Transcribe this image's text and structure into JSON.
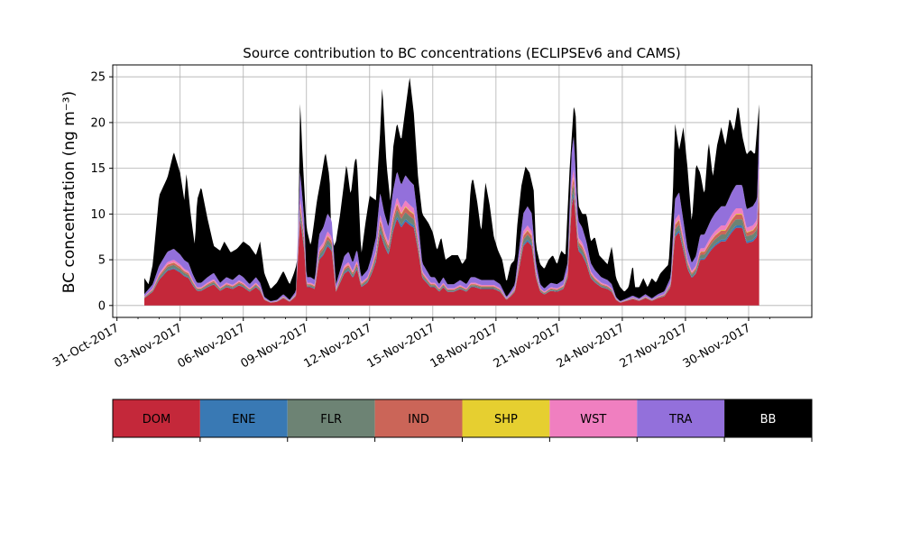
{
  "chart_data": {
    "type": "area",
    "stacked": true,
    "title": "Source contribution to BC concentrations (ECLIPSEv6 and CAMS)",
    "ylabel": "BC concentration (ng m⁻³)",
    "xlabel": "",
    "ylim": [
      -1.3,
      26.3
    ],
    "xlim": [
      -0.2,
      33.0
    ],
    "x_axis_type": "date",
    "x_start_date": "2017-11-01",
    "x_end_date": "2017-12-01",
    "x_ticks": [
      0,
      3,
      6,
      9,
      12,
      15,
      18,
      21,
      24,
      27,
      30
    ],
    "x_tick_labels": [
      "31-Oct-2017",
      "03-Nov-2017",
      "06-Nov-2017",
      "09-Nov-2017",
      "12-Nov-2017",
      "15-Nov-2017",
      "18-Nov-2017",
      "21-Nov-2017",
      "24-Nov-2017",
      "27-Nov-2017",
      "30-Nov-2017"
    ],
    "y_ticks": [
      0,
      5,
      10,
      15,
      20,
      25
    ],
    "y_tick_labels": [
      "0",
      "5",
      "10",
      "15",
      "20",
      "25"
    ],
    "grid": true,
    "total_series": [
      [
        1.3,
        3.0
      ],
      [
        1.5,
        2.3
      ],
      [
        1.7,
        4.5
      ],
      [
        2.0,
        12.0
      ],
      [
        2.4,
        14.0
      ],
      [
        2.7,
        16.8
      ],
      [
        3.0,
        14.5
      ],
      [
        3.2,
        11.5
      ],
      [
        3.3,
        14.5
      ],
      [
        3.5,
        10.0
      ],
      [
        3.7,
        6.5
      ],
      [
        3.8,
        11.5
      ],
      [
        4.0,
        13.0
      ],
      [
        4.3,
        9.5
      ],
      [
        4.6,
        6.5
      ],
      [
        4.9,
        6.0
      ],
      [
        5.1,
        7.0
      ],
      [
        5.4,
        5.8
      ],
      [
        5.7,
        6.2
      ],
      [
        6.0,
        7.0
      ],
      [
        6.3,
        6.5
      ],
      [
        6.6,
        5.5
      ],
      [
        6.8,
        7.0
      ],
      [
        7.0,
        3.5
      ],
      [
        7.3,
        1.8
      ],
      [
        7.6,
        2.5
      ],
      [
        7.9,
        3.8
      ],
      [
        8.2,
        2.3
      ],
      [
        8.4,
        3.5
      ],
      [
        8.6,
        5.0
      ],
      [
        8.7,
        22.5
      ],
      [
        8.8,
        17.0
      ],
      [
        9.0,
        8.5
      ],
      [
        9.2,
        6.5
      ],
      [
        9.3,
        8.0
      ],
      [
        9.5,
        11.5
      ],
      [
        9.7,
        14.0
      ],
      [
        9.9,
        16.8
      ],
      [
        10.1,
        14.0
      ],
      [
        10.2,
        6.0
      ],
      [
        10.4,
        7.0
      ],
      [
        10.6,
        10.0
      ],
      [
        10.9,
        15.5
      ],
      [
        11.1,
        12.0
      ],
      [
        11.3,
        16.0
      ],
      [
        11.4,
        16.0
      ],
      [
        11.6,
        5.5
      ],
      [
        11.8,
        9.0
      ],
      [
        12.0,
        12.0
      ],
      [
        12.3,
        11.5
      ],
      [
        12.5,
        19.0
      ],
      [
        12.6,
        24.2
      ],
      [
        12.8,
        15.5
      ],
      [
        13.0,
        11.0
      ],
      [
        13.1,
        17.0
      ],
      [
        13.3,
        20.0
      ],
      [
        13.5,
        18.0
      ],
      [
        13.7,
        21.5
      ],
      [
        13.9,
        25.0
      ],
      [
        14.1,
        21.0
      ],
      [
        14.3,
        14.0
      ],
      [
        14.5,
        10.0
      ],
      [
        14.8,
        9.0
      ],
      [
        15.0,
        8.0
      ],
      [
        15.2,
        6.0
      ],
      [
        15.4,
        7.5
      ],
      [
        15.6,
        5.0
      ],
      [
        15.9,
        5.5
      ],
      [
        16.2,
        5.5
      ],
      [
        16.4,
        4.5
      ],
      [
        16.6,
        5.2
      ],
      [
        16.8,
        13.0
      ],
      [
        16.9,
        14.0
      ],
      [
        17.1,
        11.5
      ],
      [
        17.3,
        8.0
      ],
      [
        17.5,
        13.5
      ],
      [
        17.7,
        11.0
      ],
      [
        17.9,
        7.5
      ],
      [
        18.1,
        6.0
      ],
      [
        18.3,
        5.0
      ],
      [
        18.5,
        2.5
      ],
      [
        18.7,
        4.5
      ],
      [
        18.9,
        5.0
      ],
      [
        19.0,
        8.5
      ],
      [
        19.2,
        13.0
      ],
      [
        19.4,
        15.2
      ],
      [
        19.6,
        14.5
      ],
      [
        19.8,
        12.5
      ],
      [
        19.9,
        6.5
      ],
      [
        20.1,
        4.5
      ],
      [
        20.3,
        4.0
      ],
      [
        20.5,
        5.0
      ],
      [
        20.7,
        5.5
      ],
      [
        20.9,
        4.5
      ],
      [
        21.1,
        6.0
      ],
      [
        21.3,
        5.5
      ],
      [
        21.5,
        15.0
      ],
      [
        21.7,
        22.0
      ],
      [
        21.8,
        20.5
      ],
      [
        21.9,
        11.0
      ],
      [
        22.1,
        10.0
      ],
      [
        22.3,
        10.0
      ],
      [
        22.5,
        7.0
      ],
      [
        22.7,
        7.5
      ],
      [
        22.9,
        5.5
      ],
      [
        23.1,
        5.0
      ],
      [
        23.3,
        4.5
      ],
      [
        23.5,
        6.5
      ],
      [
        23.7,
        3.0
      ],
      [
        23.9,
        2.0
      ],
      [
        24.1,
        1.5
      ],
      [
        24.3,
        2.0
      ],
      [
        24.5,
        4.5
      ],
      [
        24.6,
        2.0
      ],
      [
        24.8,
        2.0
      ],
      [
        25.0,
        3.0
      ],
      [
        25.2,
        2.0
      ],
      [
        25.4,
        3.0
      ],
      [
        25.6,
        2.5
      ],
      [
        25.8,
        3.5
      ],
      [
        26.0,
        4.0
      ],
      [
        26.2,
        4.5
      ],
      [
        26.4,
        12.0
      ],
      [
        26.5,
        20.0
      ],
      [
        26.7,
        17.0
      ],
      [
        26.9,
        19.5
      ],
      [
        27.1,
        15.0
      ],
      [
        27.3,
        9.0
      ],
      [
        27.5,
        15.5
      ],
      [
        27.7,
        14.5
      ],
      [
        27.9,
        12.0
      ],
      [
        28.1,
        18.0
      ],
      [
        28.3,
        14.0
      ],
      [
        28.5,
        17.5
      ],
      [
        28.7,
        19.5
      ],
      [
        28.9,
        17.5
      ],
      [
        29.1,
        20.5
      ],
      [
        29.3,
        19.0
      ],
      [
        29.5,
        22.0
      ],
      [
        29.7,
        18.5
      ],
      [
        29.9,
        16.5
      ],
      [
        30.1,
        17.0
      ],
      [
        30.3,
        16.5
      ],
      [
        30.5,
        22.0
      ]
    ],
    "bb_top_color": "#000000",
    "series": [
      {
        "name": "DOM",
        "color": "#c4283a",
        "values": [
          [
            1.3,
            0.8
          ],
          [
            1.7,
            1.5
          ],
          [
            2.0,
            2.8
          ],
          [
            2.4,
            3.8
          ],
          [
            2.7,
            4.0
          ],
          [
            3.0,
            3.6
          ],
          [
            3.2,
            3.2
          ],
          [
            3.4,
            3.0
          ],
          [
            3.6,
            2.2
          ],
          [
            3.8,
            1.6
          ],
          [
            4.0,
            1.6
          ],
          [
            4.3,
            2.0
          ],
          [
            4.6,
            2.3
          ],
          [
            4.9,
            1.6
          ],
          [
            5.2,
            2.0
          ],
          [
            5.5,
            1.8
          ],
          [
            5.8,
            2.2
          ],
          [
            6.0,
            2.0
          ],
          [
            6.3,
            1.5
          ],
          [
            6.6,
            2.0
          ],
          [
            6.8,
            1.6
          ],
          [
            7.0,
            0.6
          ],
          [
            7.3,
            0.3
          ],
          [
            7.6,
            0.4
          ],
          [
            7.9,
            0.8
          ],
          [
            8.2,
            0.4
          ],
          [
            8.5,
            1.0
          ],
          [
            8.7,
            9.5
          ],
          [
            8.9,
            6.0
          ],
          [
            9.0,
            2.0
          ],
          [
            9.2,
            2.0
          ],
          [
            9.4,
            1.8
          ],
          [
            9.6,
            5.0
          ],
          [
            9.8,
            5.5
          ],
          [
            10.0,
            6.5
          ],
          [
            10.2,
            6.0
          ],
          [
            10.4,
            1.5
          ],
          [
            10.6,
            2.5
          ],
          [
            10.8,
            3.5
          ],
          [
            11.0,
            3.8
          ],
          [
            11.2,
            3.0
          ],
          [
            11.4,
            4.0
          ],
          [
            11.6,
            2.0
          ],
          [
            11.9,
            2.5
          ],
          [
            12.1,
            3.5
          ],
          [
            12.3,
            4.8
          ],
          [
            12.5,
            8.0
          ],
          [
            12.7,
            6.5
          ],
          [
            12.9,
            5.5
          ],
          [
            13.1,
            8.0
          ],
          [
            13.3,
            9.5
          ],
          [
            13.5,
            8.5
          ],
          [
            13.7,
            9.2
          ],
          [
            13.9,
            8.8
          ],
          [
            14.1,
            8.5
          ],
          [
            14.3,
            6.0
          ],
          [
            14.5,
            3.0
          ],
          [
            14.7,
            2.5
          ],
          [
            14.9,
            2.0
          ],
          [
            15.1,
            2.0
          ],
          [
            15.3,
            1.5
          ],
          [
            15.5,
            2.0
          ],
          [
            15.7,
            1.5
          ],
          [
            16.0,
            1.5
          ],
          [
            16.3,
            1.8
          ],
          [
            16.6,
            1.5
          ],
          [
            16.8,
            2.0
          ],
          [
            17.0,
            2.0
          ],
          [
            17.3,
            1.8
          ],
          [
            17.6,
            1.8
          ],
          [
            17.9,
            1.8
          ],
          [
            18.2,
            1.5
          ],
          [
            18.5,
            0.6
          ],
          [
            18.7,
            1.0
          ],
          [
            18.9,
            1.5
          ],
          [
            19.1,
            4.0
          ],
          [
            19.3,
            6.5
          ],
          [
            19.5,
            7.0
          ],
          [
            19.7,
            6.5
          ],
          [
            19.9,
            3.0
          ],
          [
            20.1,
            1.5
          ],
          [
            20.3,
            1.2
          ],
          [
            20.6,
            1.6
          ],
          [
            20.9,
            1.5
          ],
          [
            21.2,
            1.8
          ],
          [
            21.4,
            3.0
          ],
          [
            21.6,
            11.0
          ],
          [
            21.7,
            12.0
          ],
          [
            21.9,
            6.0
          ],
          [
            22.1,
            5.5
          ],
          [
            22.3,
            4.5
          ],
          [
            22.5,
            3.0
          ],
          [
            22.7,
            2.5
          ],
          [
            23.0,
            2.0
          ],
          [
            23.3,
            1.8
          ],
          [
            23.5,
            1.5
          ],
          [
            23.7,
            0.6
          ],
          [
            23.9,
            0.3
          ],
          [
            24.2,
            0.5
          ],
          [
            24.5,
            0.7
          ],
          [
            24.8,
            0.5
          ],
          [
            25.1,
            0.8
          ],
          [
            25.4,
            0.5
          ],
          [
            25.7,
            0.8
          ],
          [
            26.0,
            1.0
          ],
          [
            26.3,
            2.0
          ],
          [
            26.5,
            7.5
          ],
          [
            26.7,
            8.0
          ],
          [
            26.9,
            6.0
          ],
          [
            27.1,
            4.0
          ],
          [
            27.3,
            3.0
          ],
          [
            27.5,
            3.5
          ],
          [
            27.7,
            5.0
          ],
          [
            27.9,
            5.0
          ],
          [
            28.2,
            6.0
          ],
          [
            28.4,
            6.5
          ],
          [
            28.7,
            7.0
          ],
          [
            28.9,
            7.0
          ],
          [
            29.2,
            8.0
          ],
          [
            29.4,
            8.5
          ],
          [
            29.7,
            8.5
          ],
          [
            29.9,
            6.8
          ],
          [
            30.2,
            7.0
          ],
          [
            30.4,
            7.5
          ],
          [
            30.5,
            12.5
          ]
        ]
      },
      {
        "name": "ENE",
        "color": "#3979b4",
        "ratio": 0.03
      },
      {
        "name": "FLR",
        "color": "#6d8374",
        "ratio": 0.08
      },
      {
        "name": "IND",
        "color": "#cb6558",
        "ratio": 0.06
      },
      {
        "name": "SHP",
        "color": "#e6cf30",
        "ratio": 0.01
      },
      {
        "name": "WST",
        "color": "#f07fc0",
        "ratio": 0.07
      },
      {
        "name": "TRA",
        "color": "#9370db",
        "ratio": 0.3
      },
      {
        "name": "BB",
        "color": "#000000",
        "ratio": null
      }
    ],
    "legend": {
      "placement": "bottom",
      "items": [
        "DOM",
        "ENE",
        "FLR",
        "IND",
        "SHP",
        "WST",
        "TRA",
        "BB"
      ]
    }
  }
}
